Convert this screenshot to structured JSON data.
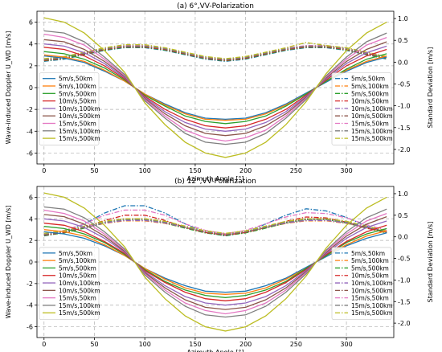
{
  "chart_data": [
    {
      "type": "line",
      "title": "(a) 6°,VV-Polarization",
      "xlabel": "Azimuth Angle [°]",
      "ylabel": "Wave-induced Doppler U_WD [m/s]",
      "y2label": "Standard Deviation [m/s]",
      "xlim": [
        -7,
        347
      ],
      "ylim": [
        -7.0,
        7.0
      ],
      "y2lim": [
        -2.333,
        1.167
      ],
      "xticks": [
        "0",
        "50",
        "100",
        "150",
        "200",
        "250",
        "300"
      ],
      "yticks": [
        "-6",
        "-4",
        "-2",
        "0",
        "2",
        "4",
        "6"
      ],
      "y2ticks": [
        "-2.0",
        "-1.5",
        "-1.0",
        "-0.5",
        "0.0",
        "0.5",
        "1.0"
      ],
      "grid": true,
      "legend_left": "center-left",
      "legend_right": "center-right",
      "x": [
        0,
        20,
        40,
        60,
        80,
        100,
        120,
        140,
        160,
        180,
        200,
        220,
        240,
        260,
        280,
        300,
        320,
        340
      ],
      "series": [
        {
          "name": "5m/s,50km",
          "axis": "left",
          "color": "#1f77b4",
          "values": [
            2.9,
            2.7,
            2.3,
            1.5,
            0.6,
            -0.6,
            -1.5,
            -2.3,
            -2.8,
            -2.9,
            -2.8,
            -2.3,
            -1.5,
            -0.5,
            0.5,
            1.5,
            2.3,
            2.8
          ]
        },
        {
          "name": "5m/s,100km",
          "axis": "left",
          "color": "#ff7f0e",
          "values": [
            3.0,
            2.8,
            2.4,
            1.6,
            0.6,
            -0.6,
            -1.6,
            -2.4,
            -2.9,
            -3.0,
            -2.9,
            -2.4,
            -1.6,
            -0.6,
            0.6,
            1.6,
            2.4,
            2.9
          ]
        },
        {
          "name": "5m/s,500km",
          "axis": "left",
          "color": "#2ca02c",
          "values": [
            3.3,
            3.1,
            2.6,
            1.8,
            0.7,
            -0.7,
            -1.7,
            -2.6,
            -3.1,
            -3.3,
            -3.1,
            -2.6,
            -1.7,
            -0.6,
            0.6,
            1.7,
            2.6,
            3.1
          ]
        },
        {
          "name": "10m/s,50km",
          "axis": "left",
          "color": "#d62728",
          "values": [
            3.7,
            3.5,
            2.9,
            2.0,
            0.8,
            -0.8,
            -2.0,
            -2.9,
            -3.5,
            -3.7,
            -3.5,
            -2.9,
            -2.0,
            -0.7,
            0.7,
            2.0,
            2.9,
            3.5
          ]
        },
        {
          "name": "10m/s,100km",
          "axis": "left",
          "color": "#9467bd",
          "values": [
            4.0,
            3.8,
            3.2,
            2.2,
            0.9,
            -0.9,
            -2.2,
            -3.2,
            -3.8,
            -4.0,
            -3.8,
            -3.2,
            -2.2,
            -0.8,
            0.8,
            2.2,
            3.2,
            3.8
          ]
        },
        {
          "name": "10m/s,500km",
          "axis": "left",
          "color": "#8c564b",
          "values": [
            4.4,
            4.2,
            3.5,
            2.4,
            1.0,
            -1.0,
            -2.4,
            -3.5,
            -4.2,
            -4.4,
            -4.2,
            -3.5,
            -2.4,
            -0.9,
            0.9,
            2.4,
            3.5,
            4.2
          ]
        },
        {
          "name": "15m/s,50km",
          "axis": "left",
          "color": "#e377c2",
          "values": [
            4.9,
            4.6,
            3.9,
            2.6,
            1.1,
            -1.1,
            -2.6,
            -3.9,
            -4.6,
            -4.9,
            -4.6,
            -3.9,
            -2.6,
            -1.0,
            1.0,
            2.6,
            3.9,
            4.6
          ]
        },
        {
          "name": "15m/s,100km",
          "axis": "left",
          "color": "#7f7f7f",
          "values": [
            5.2,
            5.0,
            4.2,
            2.8,
            1.2,
            -1.2,
            -2.8,
            -4.2,
            -5.0,
            -5.2,
            -5.0,
            -4.2,
            -2.8,
            -1.1,
            1.1,
            2.8,
            4.2,
            5.0
          ]
        },
        {
          "name": "15m/s,500km",
          "axis": "left",
          "color": "#bcbd22",
          "values": [
            6.4,
            6.0,
            5.0,
            3.4,
            1.4,
            -1.4,
            -3.4,
            -5.0,
            -6.0,
            -6.4,
            -6.0,
            -5.0,
            -3.4,
            -1.3,
            1.3,
            3.4,
            5.0,
            6.0
          ]
        },
        {
          "name": "5m/s,50km",
          "axis": "right",
          "color": "#1f77b4",
          "values": [
            0.02,
            0.07,
            0.17,
            0.27,
            0.33,
            0.33,
            0.27,
            0.17,
            0.07,
            0.02,
            0.07,
            0.17,
            0.27,
            0.33,
            0.33,
            0.27,
            0.17,
            0.07
          ]
        },
        {
          "name": "5m/s,100km",
          "axis": "right",
          "color": "#ff7f0e",
          "values": [
            0.05,
            0.1,
            0.2,
            0.3,
            0.36,
            0.36,
            0.3,
            0.2,
            0.1,
            0.05,
            0.1,
            0.2,
            0.3,
            0.36,
            0.36,
            0.3,
            0.2,
            0.1
          ]
        },
        {
          "name": "5m/s,500km",
          "axis": "right",
          "color": "#2ca02c",
          "values": [
            0.03,
            0.08,
            0.18,
            0.28,
            0.34,
            0.34,
            0.28,
            0.18,
            0.08,
            0.03,
            0.08,
            0.18,
            0.28,
            0.34,
            0.34,
            0.28,
            0.18,
            0.08
          ]
        },
        {
          "name": "10m/s,50km",
          "axis": "right",
          "color": "#d62728",
          "values": [
            0.04,
            0.09,
            0.19,
            0.29,
            0.35,
            0.35,
            0.29,
            0.19,
            0.09,
            0.04,
            0.09,
            0.19,
            0.29,
            0.35,
            0.35,
            0.29,
            0.19,
            0.09
          ]
        },
        {
          "name": "10m/s,100km",
          "axis": "right",
          "color": "#9467bd",
          "values": [
            0.06,
            0.11,
            0.21,
            0.31,
            0.37,
            0.37,
            0.31,
            0.21,
            0.11,
            0.06,
            0.11,
            0.21,
            0.31,
            0.37,
            0.37,
            0.31,
            0.21,
            0.11
          ]
        },
        {
          "name": "10m/s,500km",
          "axis": "right",
          "color": "#8c564b",
          "values": [
            0.05,
            0.1,
            0.2,
            0.3,
            0.36,
            0.36,
            0.3,
            0.2,
            0.1,
            0.05,
            0.1,
            0.2,
            0.3,
            0.36,
            0.36,
            0.3,
            0.2,
            0.1
          ]
        },
        {
          "name": "15m/s,50km",
          "axis": "right",
          "color": "#e377c2",
          "values": [
            0.07,
            0.12,
            0.22,
            0.32,
            0.38,
            0.38,
            0.32,
            0.22,
            0.12,
            0.07,
            0.12,
            0.22,
            0.32,
            0.38,
            0.38,
            0.32,
            0.22,
            0.12
          ]
        },
        {
          "name": "15m/s,100km",
          "axis": "right",
          "color": "#7f7f7f",
          "values": [
            0.06,
            0.11,
            0.21,
            0.31,
            0.37,
            0.37,
            0.31,
            0.21,
            0.11,
            0.06,
            0.11,
            0.21,
            0.31,
            0.37,
            0.37,
            0.31,
            0.21,
            0.11
          ]
        },
        {
          "name": "15m/s,500km",
          "axis": "right",
          "color": "#bcbd22",
          "values": [
            0.08,
            0.13,
            0.23,
            0.33,
            0.4,
            0.4,
            0.33,
            0.23,
            0.13,
            0.08,
            0.13,
            0.23,
            0.33,
            0.45,
            0.38,
            0.33,
            0.23,
            0.13
          ]
        }
      ]
    },
    {
      "type": "line",
      "title": "(b) 12°,VV-Polarization",
      "xlabel": "Azimuth Angle [°]",
      "ylabel": "Wave-induced Doppler U_WD [m/s]",
      "y2label": "Standard Deviation [m/s]",
      "xlim": [
        -7,
        347
      ],
      "ylim": [
        -7.0,
        7.0
      ],
      "y2lim": [
        -2.333,
        1.167
      ],
      "xticks": [
        "0",
        "50",
        "100",
        "150",
        "200",
        "250",
        "300"
      ],
      "yticks": [
        "-6",
        "-4",
        "-2",
        "0",
        "2",
        "4",
        "6"
      ],
      "y2ticks": [
        "-2.0",
        "-1.5",
        "-1.0",
        "-0.5",
        "0.0",
        "0.5",
        "1.0"
      ],
      "grid": true,
      "legend_left": "center-left",
      "legend_right": "center-right",
      "x": [
        0,
        20,
        40,
        60,
        80,
        100,
        120,
        140,
        160,
        180,
        200,
        220,
        240,
        260,
        280,
        300,
        320,
        340
      ],
      "series": [
        {
          "name": "5m/s,50km",
          "axis": "left",
          "color": "#1f77b4",
          "values": [
            2.8,
            2.6,
            2.2,
            1.5,
            0.6,
            -0.6,
            -1.5,
            -2.2,
            -2.7,
            -2.8,
            -2.7,
            -2.2,
            -1.5,
            -0.5,
            0.5,
            1.5,
            2.2,
            2.7
          ]
        },
        {
          "name": "5m/s,100km",
          "axis": "left",
          "color": "#ff7f0e",
          "values": [
            3.0,
            2.8,
            2.4,
            1.6,
            0.6,
            -0.6,
            -1.6,
            -2.4,
            -2.9,
            -3.0,
            -2.9,
            -2.4,
            -1.6,
            -0.6,
            0.6,
            1.6,
            2.4,
            2.9
          ]
        },
        {
          "name": "5m/s,500km",
          "axis": "left",
          "color": "#2ca02c",
          "values": [
            3.3,
            3.1,
            2.6,
            1.8,
            0.7,
            -0.7,
            -1.8,
            -2.6,
            -3.1,
            -3.3,
            -3.1,
            -2.6,
            -1.8,
            -0.6,
            0.6,
            1.8,
            2.6,
            3.1
          ]
        },
        {
          "name": "10m/s,50km",
          "axis": "left",
          "color": "#d62728",
          "values": [
            3.6,
            3.4,
            2.8,
            1.9,
            0.8,
            -0.8,
            -1.9,
            -2.8,
            -3.4,
            -3.6,
            -3.4,
            -2.8,
            -1.9,
            -0.7,
            0.7,
            1.9,
            2.8,
            3.4
          ]
        },
        {
          "name": "10m/s,100km",
          "axis": "left",
          "color": "#9467bd",
          "values": [
            4.0,
            3.8,
            3.2,
            2.2,
            0.9,
            -0.9,
            -2.2,
            -3.2,
            -3.8,
            -4.0,
            -3.8,
            -3.2,
            -2.2,
            -0.8,
            0.8,
            2.2,
            3.2,
            3.8
          ]
        },
        {
          "name": "10m/s,500km",
          "axis": "left",
          "color": "#8c564b",
          "values": [
            4.4,
            4.2,
            3.5,
            2.4,
            1.0,
            -1.0,
            -2.4,
            -3.5,
            -4.2,
            -4.4,
            -4.2,
            -3.5,
            -2.4,
            -0.9,
            0.9,
            2.4,
            3.5,
            4.2
          ]
        },
        {
          "name": "15m/s,50km",
          "axis": "left",
          "color": "#e377c2",
          "values": [
            4.8,
            4.5,
            3.8,
            2.6,
            1.1,
            -1.1,
            -2.6,
            -3.8,
            -4.5,
            -4.8,
            -4.5,
            -3.8,
            -2.6,
            -1.0,
            1.0,
            2.6,
            3.8,
            4.5
          ]
        },
        {
          "name": "15m/s,100km",
          "axis": "left",
          "color": "#7f7f7f",
          "values": [
            5.1,
            4.9,
            4.1,
            2.8,
            1.2,
            -1.2,
            -2.8,
            -4.1,
            -4.9,
            -5.1,
            -4.9,
            -4.1,
            -2.8,
            -1.1,
            1.1,
            2.8,
            4.1,
            4.9
          ]
        },
        {
          "name": "15m/s,500km",
          "axis": "left",
          "color": "#bcbd22",
          "values": [
            6.4,
            6.0,
            5.0,
            3.4,
            1.4,
            -1.4,
            -3.4,
            -5.0,
            -6.0,
            -6.4,
            -6.0,
            -5.0,
            -3.4,
            -1.3,
            1.3,
            3.4,
            5.0,
            6.0
          ]
        },
        {
          "name": "5m/s,50km",
          "axis": "right",
          "color": "#1f77b4",
          "values": [
            0.02,
            0.1,
            0.3,
            0.55,
            0.72,
            0.72,
            0.55,
            0.3,
            0.1,
            0.02,
            0.1,
            0.3,
            0.5,
            0.65,
            0.6,
            0.45,
            0.25,
            0.1
          ]
        },
        {
          "name": "5m/s,100km",
          "axis": "right",
          "color": "#ff7f0e",
          "values": [
            0.05,
            0.11,
            0.21,
            0.31,
            0.37,
            0.37,
            0.31,
            0.21,
            0.11,
            0.05,
            0.11,
            0.21,
            0.31,
            0.37,
            0.37,
            0.31,
            0.21,
            0.11
          ]
        },
        {
          "name": "5m/s,500km",
          "axis": "right",
          "color": "#2ca02c",
          "values": [
            0.03,
            0.09,
            0.2,
            0.32,
            0.4,
            0.4,
            0.32,
            0.2,
            0.09,
            0.03,
            0.09,
            0.2,
            0.32,
            0.4,
            0.4,
            0.32,
            0.2,
            0.09
          ]
        },
        {
          "name": "10m/s,50km",
          "axis": "right",
          "color": "#d62728",
          "values": [
            0.04,
            0.1,
            0.22,
            0.38,
            0.5,
            0.5,
            0.38,
            0.22,
            0.1,
            0.04,
            0.1,
            0.22,
            0.36,
            0.46,
            0.44,
            0.34,
            0.2,
            0.1
          ]
        },
        {
          "name": "10m/s,100km",
          "axis": "right",
          "color": "#9467bd",
          "values": [
            0.06,
            0.12,
            0.22,
            0.32,
            0.38,
            0.38,
            0.32,
            0.22,
            0.12,
            0.06,
            0.12,
            0.22,
            0.32,
            0.38,
            0.38,
            0.32,
            0.22,
            0.12
          ]
        },
        {
          "name": "10m/s,500km",
          "axis": "right",
          "color": "#8c564b",
          "values": [
            0.05,
            0.11,
            0.22,
            0.34,
            0.42,
            0.42,
            0.34,
            0.22,
            0.11,
            0.05,
            0.11,
            0.22,
            0.34,
            0.42,
            0.42,
            0.34,
            0.22,
            0.11
          ]
        },
        {
          "name": "15m/s,50km",
          "axis": "right",
          "color": "#e377c2",
          "values": [
            0.07,
            0.15,
            0.3,
            0.5,
            0.62,
            0.62,
            0.5,
            0.3,
            0.15,
            0.07,
            0.15,
            0.3,
            0.46,
            0.56,
            0.54,
            0.44,
            0.28,
            0.15
          ]
        },
        {
          "name": "15m/s,100km",
          "axis": "right",
          "color": "#7f7f7f",
          "values": [
            0.06,
            0.12,
            0.23,
            0.34,
            0.4,
            0.4,
            0.34,
            0.23,
            0.12,
            0.06,
            0.12,
            0.23,
            0.34,
            0.4,
            0.4,
            0.34,
            0.23,
            0.12
          ]
        },
        {
          "name": "15m/s,500km",
          "axis": "right",
          "color": "#bcbd22",
          "values": [
            0.08,
            0.14,
            0.25,
            0.36,
            0.42,
            0.42,
            0.36,
            0.25,
            0.14,
            0.08,
            0.14,
            0.25,
            0.36,
            0.42,
            0.42,
            0.36,
            0.25,
            0.14
          ]
        }
      ]
    }
  ]
}
